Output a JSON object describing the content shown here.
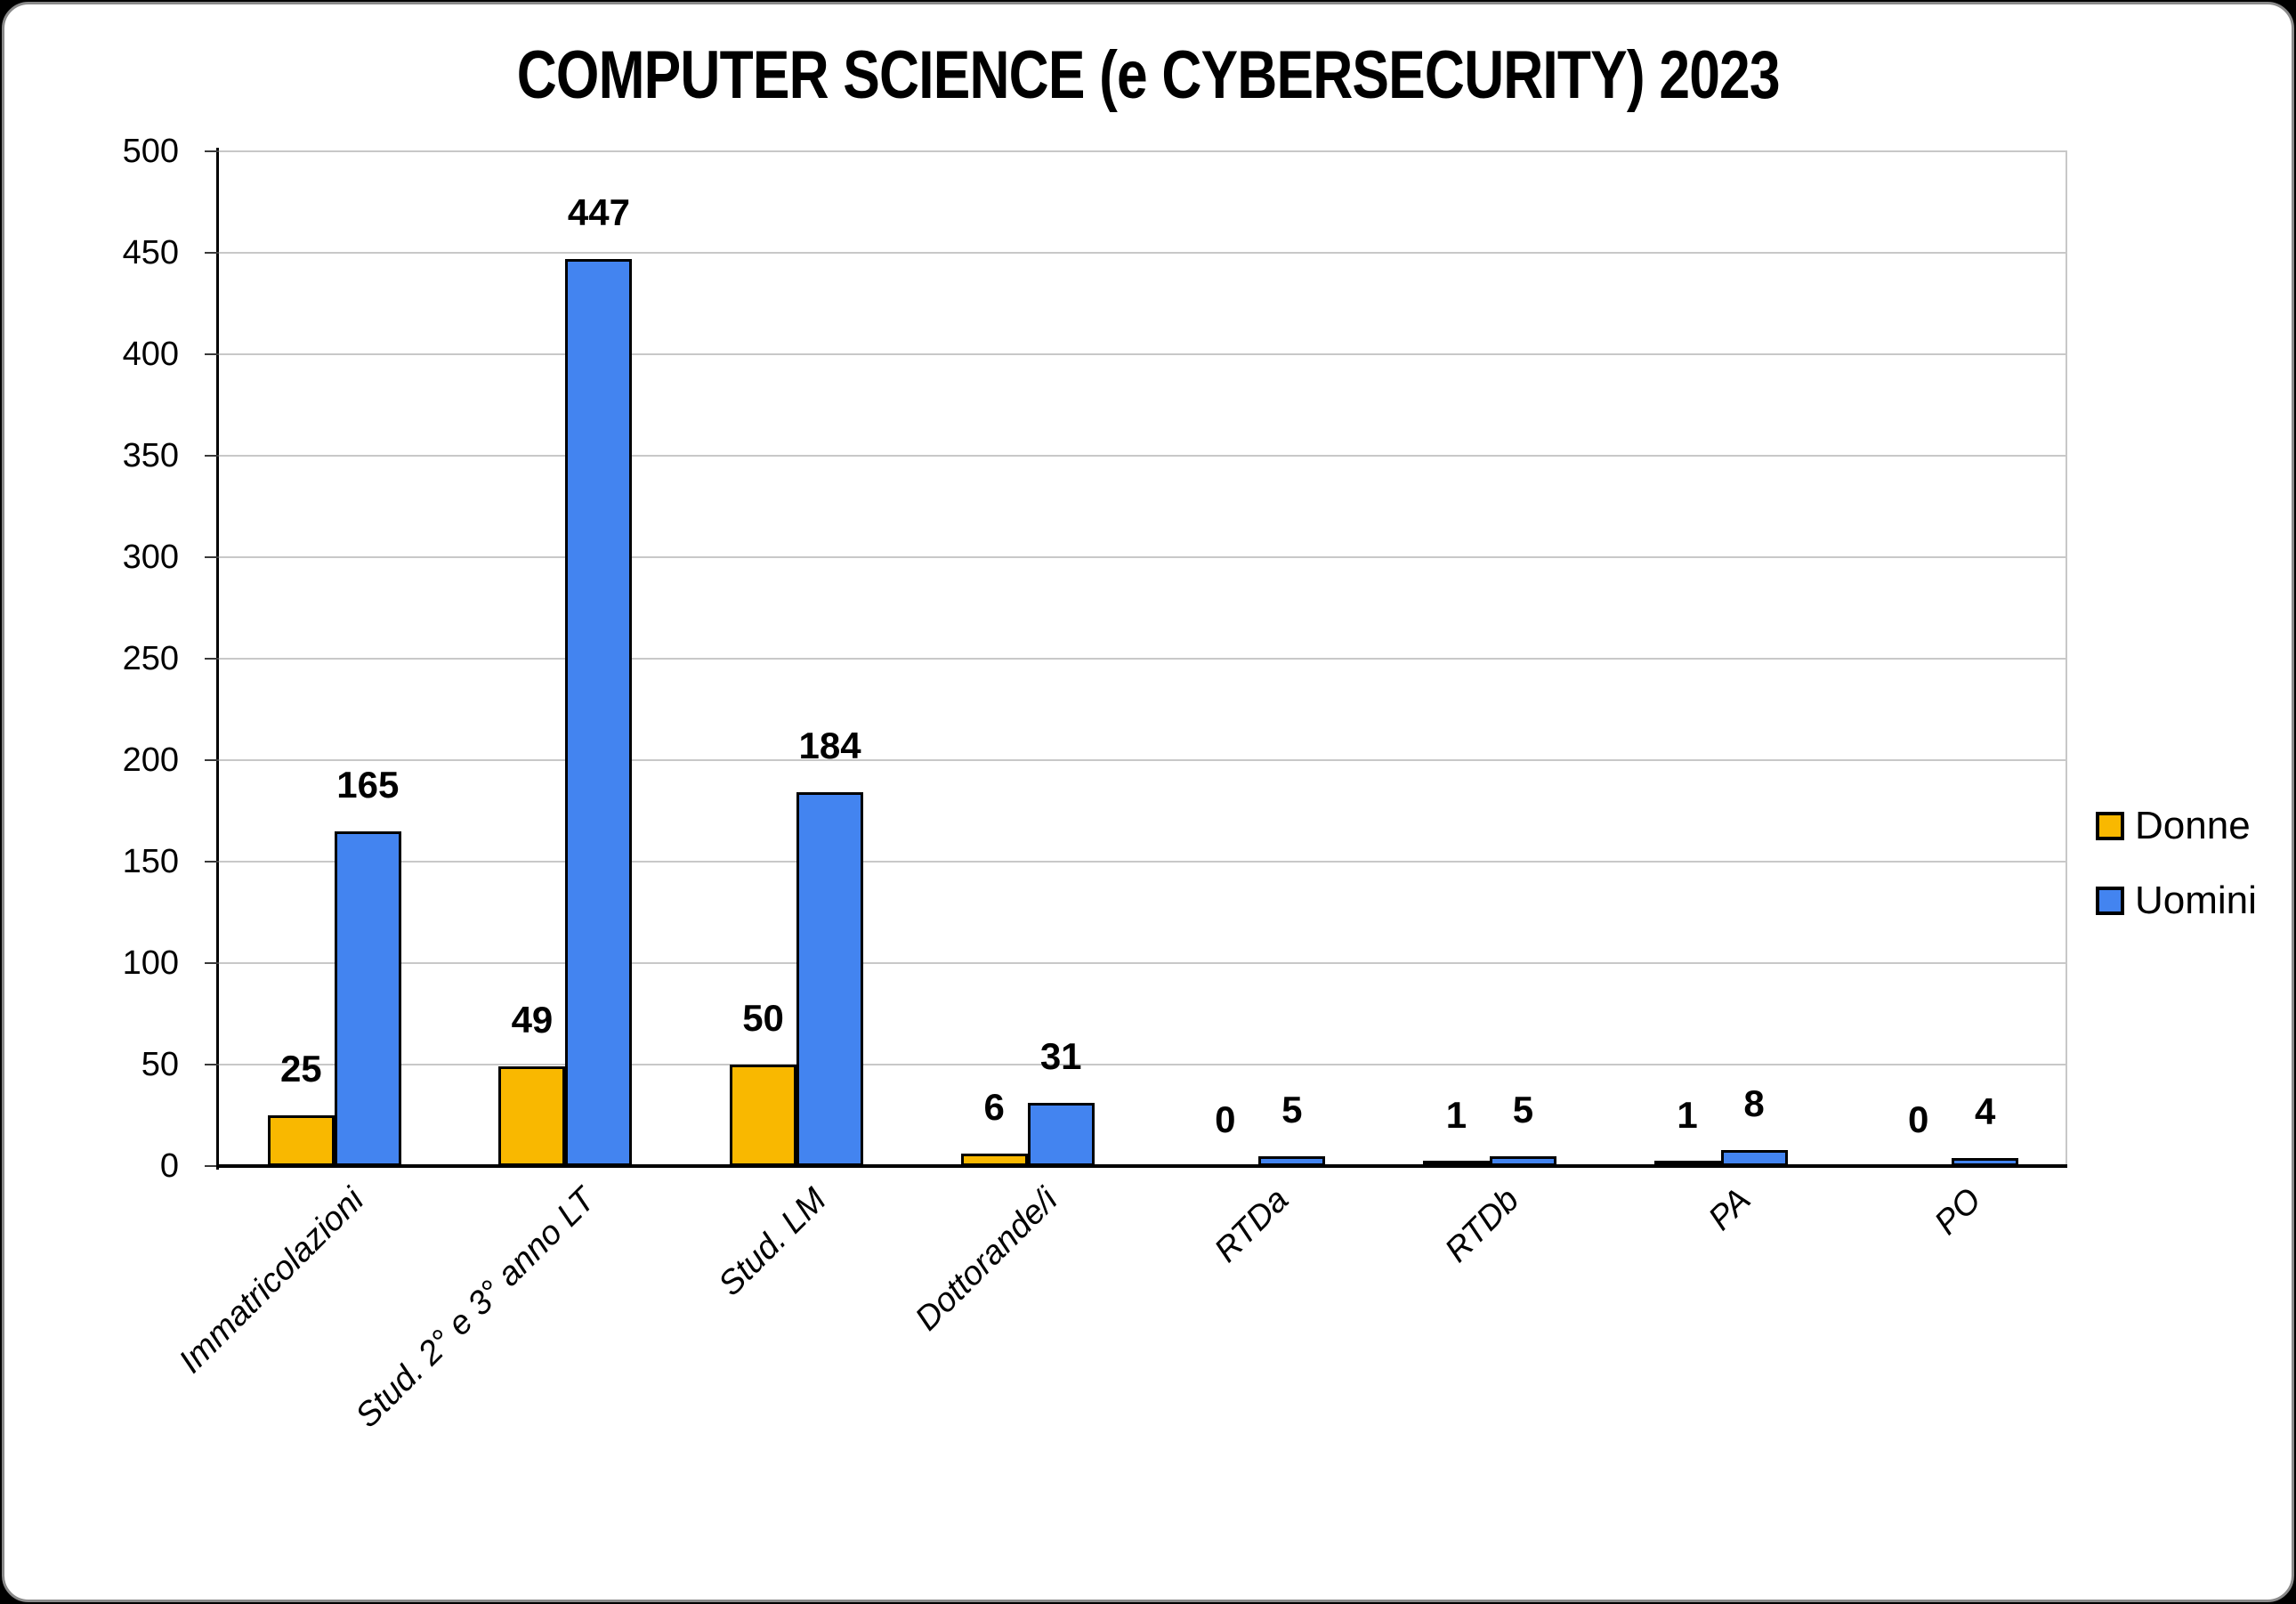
{
  "title": "COMPUTER SCIENCE (e CYBERSECURITY) 2023",
  "colors": {
    "background": "#000000",
    "panel": "#FFFFFF",
    "panel_border": "#8A8A8A",
    "grid": "#C8C8C8",
    "axis": "#000000",
    "bar_outline": "#000000",
    "donne": "#F9B800",
    "uomini": "#4384F0"
  },
  "legend": {
    "position": "right",
    "items": [
      {
        "label": "Donne",
        "color": "#F9B800"
      },
      {
        "label": "Uomini",
        "color": "#4384F0"
      }
    ]
  },
  "chart_data": {
    "type": "bar",
    "title": "COMPUTER SCIENCE (e CYBERSECURITY) 2023",
    "categories": [
      "Immatricolazioni",
      "Stud. 2° e 3° anno LT",
      "Stud. LM",
      "Dottorande/i",
      "RTDa",
      "RTDb",
      "PA",
      "PO"
    ],
    "series": [
      {
        "name": "Donne",
        "color": "#F9B800",
        "values": [
          25,
          49,
          50,
          6,
          0,
          1,
          1,
          0
        ]
      },
      {
        "name": "Uomini",
        "color": "#4384F0",
        "values": [
          165,
          447,
          184,
          31,
          5,
          5,
          8,
          4
        ]
      }
    ],
    "xlabel": "",
    "ylabel": "",
    "ylim": [
      0,
      500
    ],
    "yticks": [
      0,
      50,
      100,
      150,
      200,
      250,
      300,
      350,
      400,
      450,
      500
    ],
    "grid": true,
    "legend_position": "right",
    "data_labels": true,
    "bar_outline": "#000000"
  }
}
